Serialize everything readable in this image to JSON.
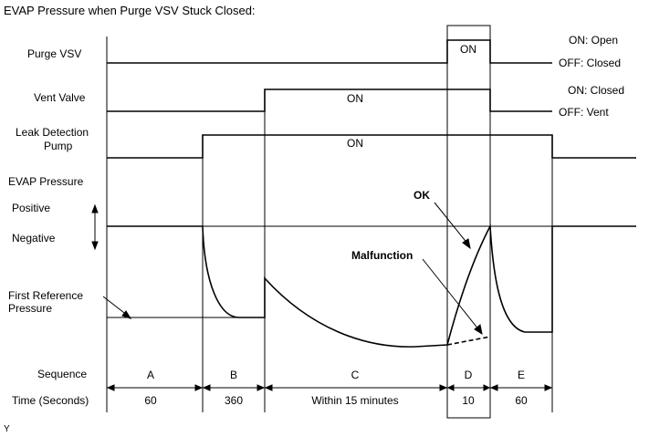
{
  "title": "EVAP Pressure when Purge VSV Stuck Closed:",
  "rows": {
    "purge_vsv": "Purge VSV",
    "vent_valve": "Vent Valve",
    "leak_pump_line1": "Leak Detection",
    "leak_pump_line2": "Pump",
    "evap_pressure": "EVAP Pressure",
    "positive": "Positive",
    "negative": "Negative",
    "first_ref_line1": "First Reference",
    "first_ref_line2": "Pressure",
    "sequence": "Sequence",
    "time": "Time (Seconds)"
  },
  "state_labels": {
    "purge_on": "ON: Open",
    "purge_off": "OFF: Closed",
    "vent_on": "ON: Closed",
    "vent_off": "OFF: Vent",
    "on": "ON"
  },
  "annotations": {
    "ok": "OK",
    "malfunction": "Malfunction"
  },
  "sequence": [
    {
      "id": "A",
      "time": "60"
    },
    {
      "id": "B",
      "time": "360"
    },
    {
      "id": "C",
      "time": "Within 15 minutes"
    },
    {
      "id": "D",
      "time": "10"
    },
    {
      "id": "E",
      "time": "60"
    }
  ],
  "corner_mark": "Y"
}
